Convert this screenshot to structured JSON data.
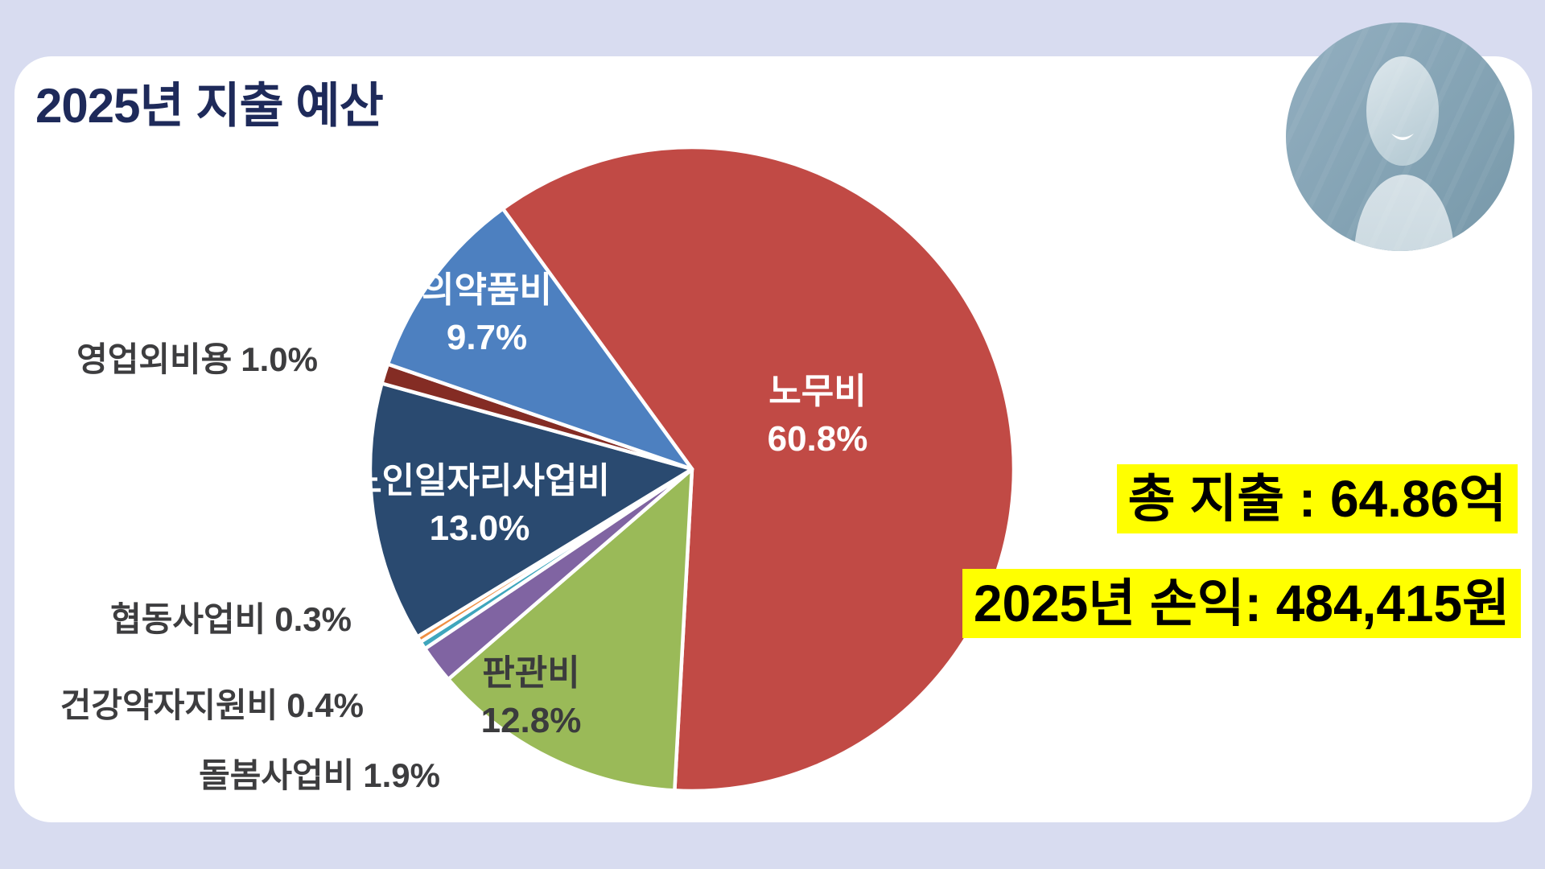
{
  "page": {
    "title": "2025년 지출 예산"
  },
  "summary": {
    "total_expense": "총 지출 : 64.86억",
    "profit": "2025년 손익: 484,415원"
  },
  "colors": {
    "background": "#d8dcf0",
    "card": "#ffffff",
    "title_text": "#1e2a5a",
    "label_text": "#3d3d3f",
    "slice_separator": "#ffffff",
    "highlight": "#ffff00",
    "highlight_text": "#000000",
    "avatar_background": "#86a4b4",
    "avatar_figure": "#d2dfe6"
  },
  "chart_data": {
    "type": "pie",
    "title": "2025년 지출 예산",
    "unit": "%",
    "start_angle_deg": -36,
    "direction": "clockwise",
    "legend": "none",
    "slices": [
      {
        "key": "labor-cost",
        "label": "노무비",
        "pct_label": "60.8%",
        "value": 60.8,
        "color": "#c14a45",
        "label_placement": "inside"
      },
      {
        "key": "sga",
        "label": "판관비",
        "pct_label": "12.8%",
        "value": 12.8,
        "color": "#9aba58",
        "label_placement": "inside"
      },
      {
        "key": "care-project",
        "label": "돌봄사업비",
        "pct_label": "1.9%",
        "value": 1.9,
        "color": "#8064a2",
        "label_placement": "outside"
      },
      {
        "key": "health-support",
        "label": "건강약자지원비",
        "pct_label": "0.4%",
        "value": 0.4,
        "color": "#3fa6bd",
        "label_placement": "outside"
      },
      {
        "key": "cooperative-project",
        "label": "협동사업비",
        "pct_label": "0.3%",
        "value": 0.3,
        "color": "#ef8f44",
        "label_placement": "outside"
      },
      {
        "key": "elderly-job-project",
        "label": "노인일자리사업비",
        "pct_label": "13.0%",
        "value": 13.0,
        "color": "#2a4a70",
        "label_placement": "inside"
      },
      {
        "key": "non-operating-expense",
        "label": "영업외비용",
        "pct_label": "1.0%",
        "value": 1.0,
        "color": "#842c24",
        "label_placement": "outside"
      },
      {
        "key": "medicine-cost",
        "label": "의약품비",
        "pct_label": "9.7%",
        "value": 9.7,
        "color": "#4d80c0",
        "label_placement": "inside"
      }
    ],
    "annotations": [
      "총 지출 : 64.86억",
      "2025년 손익: 484,415원"
    ]
  }
}
